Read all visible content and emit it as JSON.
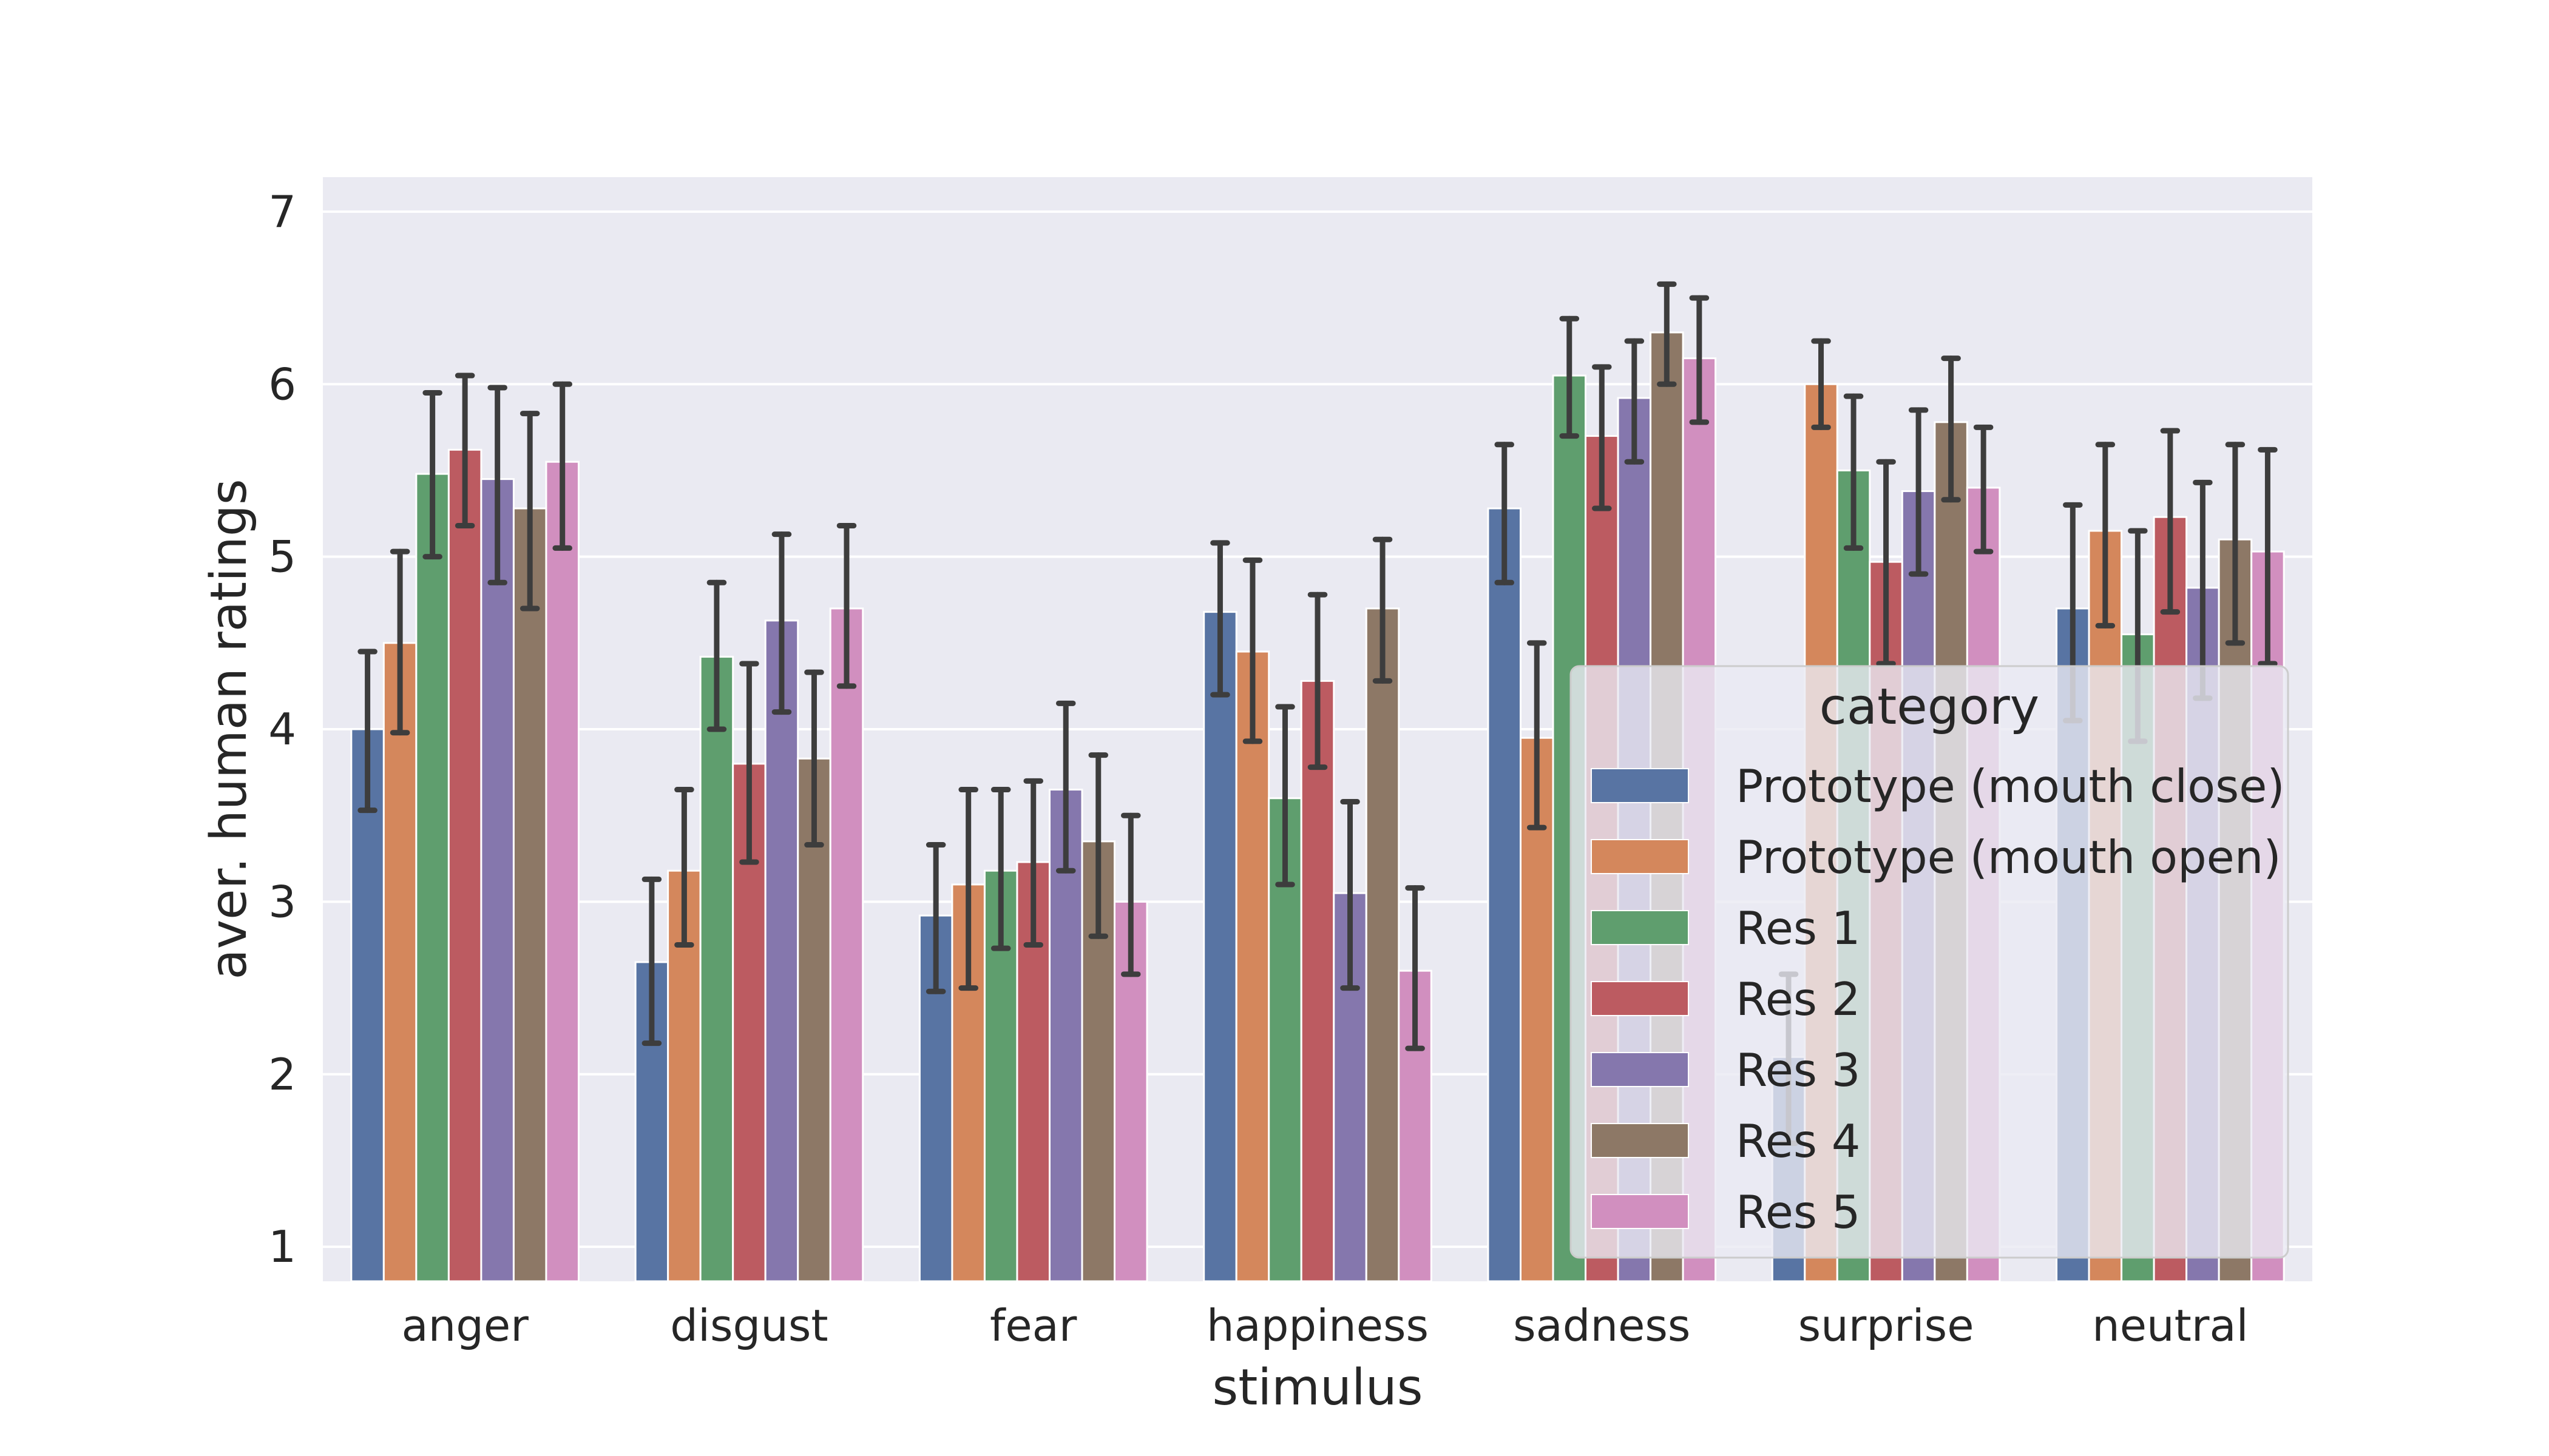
{
  "chart_data": {
    "type": "bar",
    "title": "",
    "xlabel": "stimulus",
    "ylabel": "aver. human ratings",
    "ylim": [
      0.8,
      7.2
    ],
    "yticks": [
      1,
      2,
      3,
      4,
      5,
      6,
      7
    ],
    "grid": true,
    "legend_title": "category",
    "legend_position": "right",
    "categories": [
      "anger",
      "disgust",
      "fear",
      "happiness",
      "sadness",
      "surprise",
      "neutral"
    ],
    "series": [
      {
        "name": "Prototype (mouth close)",
        "color": "#5874a3",
        "values": [
          4.0,
          2.65,
          2.92,
          4.68,
          5.28,
          2.1,
          4.7
        ],
        "err_low": [
          3.53,
          2.18,
          2.48,
          4.2,
          4.85,
          1.6,
          4.05
        ],
        "err_high": [
          4.45,
          3.13,
          3.33,
          5.08,
          5.65,
          2.58,
          5.3
        ]
      },
      {
        "name": "Prototype (mouth open)",
        "color": "#d4875c",
        "values": [
          4.5,
          3.18,
          3.1,
          4.45,
          3.95,
          6.0,
          5.15
        ],
        "err_low": [
          3.98,
          2.75,
          2.5,
          3.93,
          3.43,
          5.75,
          4.6
        ],
        "err_high": [
          5.03,
          3.65,
          3.65,
          4.98,
          4.5,
          6.25,
          5.65
        ]
      },
      {
        "name": "Res 1",
        "color": "#5f9e6e",
        "values": [
          5.48,
          4.42,
          3.18,
          3.6,
          6.05,
          5.5,
          4.55
        ],
        "err_low": [
          5.0,
          4.0,
          2.73,
          3.1,
          5.7,
          5.05,
          3.93
        ],
        "err_high": [
          5.95,
          4.85,
          3.65,
          4.13,
          6.38,
          5.93,
          5.15
        ]
      },
      {
        "name": "Res 2",
        "color": "#bc5b61",
        "values": [
          5.62,
          3.8,
          3.23,
          4.28,
          5.7,
          4.97,
          5.23
        ],
        "err_low": [
          5.18,
          3.23,
          2.75,
          3.78,
          5.28,
          4.38,
          4.68
        ],
        "err_high": [
          6.05,
          4.38,
          3.7,
          4.78,
          6.1,
          5.55,
          5.73
        ]
      },
      {
        "name": "Res 3",
        "color": "#8577ad",
        "values": [
          5.45,
          4.63,
          3.65,
          3.05,
          5.92,
          5.38,
          4.82
        ],
        "err_low": [
          4.85,
          4.1,
          3.18,
          2.5,
          5.55,
          4.9,
          4.18
        ],
        "err_high": [
          5.98,
          5.13,
          4.15,
          3.58,
          6.25,
          5.85,
          5.43
        ]
      },
      {
        "name": "Res 4",
        "color": "#8d7866",
        "values": [
          5.28,
          3.83,
          3.35,
          4.7,
          6.3,
          5.78,
          5.1
        ],
        "err_low": [
          4.7,
          3.33,
          2.8,
          4.28,
          6.0,
          5.33,
          4.5
        ],
        "err_high": [
          5.83,
          4.33,
          3.85,
          5.1,
          6.58,
          6.15,
          5.65
        ]
      },
      {
        "name": "Res 5",
        "color": "#d18fbf",
        "values": [
          5.55,
          4.7,
          3.0,
          2.6,
          6.15,
          5.4,
          5.03
        ],
        "err_low": [
          5.05,
          4.25,
          2.58,
          2.15,
          5.78,
          5.03,
          4.38
        ],
        "err_high": [
          6.0,
          5.18,
          3.5,
          3.08,
          6.5,
          5.75,
          5.62
        ]
      }
    ]
  }
}
